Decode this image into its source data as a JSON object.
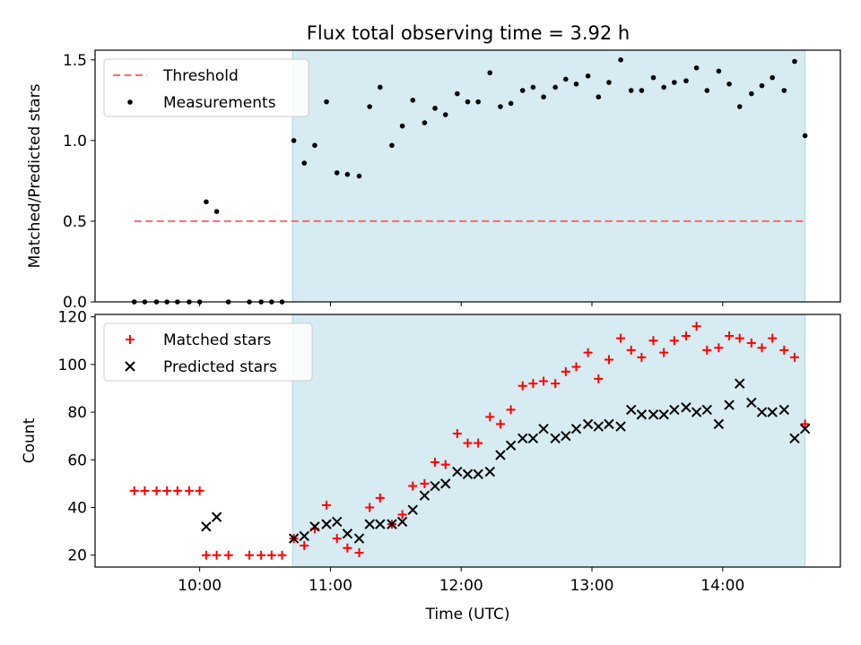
{
  "title": "Flux total observing time = 3.92 h",
  "colors": {
    "shade": "#add8e6",
    "threshold": "#ff5050",
    "matched": "#ff0000",
    "predicted": "#000000",
    "measure": "#000000"
  },
  "chart_data": [
    {
      "type": "scatter",
      "panel": "top",
      "ylabel": "Matched/Predicted stars",
      "xlabel": "",
      "xlim_hours": [
        9.2,
        14.9
      ],
      "ylim": [
        0,
        1.56
      ],
      "yticks": [
        0.0,
        0.5,
        1.0,
        1.5
      ],
      "ytick_labels": [
        "0.0",
        "0.5",
        "1.0",
        "1.5"
      ],
      "shaded_region_hours": [
        10.71,
        14.63
      ],
      "threshold": {
        "name": "Threshold",
        "value": 0.5,
        "x_range_hours": [
          9.5,
          14.63
        ]
      },
      "legend": [
        "Threshold",
        "Measurements"
      ],
      "legend_location": "upper-left",
      "series": [
        {
          "name": "Measurements",
          "x_hours": [
            9.5,
            9.58,
            9.67,
            9.75,
            9.83,
            9.92,
            10.0,
            10.05,
            10.13,
            10.22,
            10.38,
            10.47,
            10.55,
            10.63,
            10.72,
            10.8,
            10.88,
            10.97,
            11.05,
            11.13,
            11.22,
            11.3,
            11.38,
            11.47,
            11.55,
            11.63,
            11.72,
            11.8,
            11.88,
            11.97,
            12.05,
            12.13,
            12.22,
            12.3,
            12.38,
            12.47,
            12.55,
            12.63,
            12.72,
            12.8,
            12.88,
            12.97,
            13.05,
            13.13,
            13.22,
            13.3,
            13.38,
            13.47,
            13.55,
            13.63,
            13.72,
            13.8,
            13.88,
            13.97,
            14.05,
            14.13,
            14.22,
            14.3,
            14.38,
            14.47,
            14.55,
            14.63
          ],
          "values": [
            0,
            0,
            0,
            0,
            0,
            0,
            0,
            0.62,
            0.56,
            0,
            0,
            0,
            0,
            0,
            1.0,
            0.86,
            0.97,
            1.24,
            0.8,
            0.79,
            0.78,
            1.21,
            1.33,
            0.97,
            1.09,
            1.25,
            1.11,
            1.2,
            1.16,
            1.29,
            1.24,
            1.24,
            1.42,
            1.21,
            1.23,
            1.31,
            1.33,
            1.27,
            1.33,
            1.38,
            1.35,
            1.4,
            1.27,
            1.36,
            1.5,
            1.31,
            1.31,
            1.39,
            1.33,
            1.36,
            1.37,
            1.45,
            1.31,
            1.43,
            1.35,
            1.21,
            1.29,
            1.34,
            1.39,
            1.31,
            1.49,
            1.03
          ]
        }
      ]
    },
    {
      "type": "scatter",
      "panel": "bottom",
      "ylabel": "Count",
      "xlabel": "Time (UTC)",
      "xlim_hours": [
        9.2,
        14.9
      ],
      "ylim": [
        15,
        121
      ],
      "yticks": [
        20,
        40,
        60,
        80,
        100,
        120
      ],
      "ytick_labels": [
        "20",
        "40",
        "60",
        "80",
        "100",
        "120"
      ],
      "xticks_hours": [
        10,
        11,
        12,
        13,
        14
      ],
      "xtick_labels": [
        "10:00",
        "11:00",
        "12:00",
        "13:00",
        "14:00"
      ],
      "shaded_region_hours": [
        10.71,
        14.63
      ],
      "legend": [
        "Matched stars",
        "Predicted stars"
      ],
      "legend_location": "upper-left",
      "series": [
        {
          "name": "Matched stars",
          "marker": "plus",
          "x_hours": [
            9.5,
            9.58,
            9.67,
            9.75,
            9.83,
            9.92,
            10.0,
            10.05,
            10.13,
            10.22,
            10.38,
            10.47,
            10.55,
            10.63,
            10.72,
            10.8,
            10.88,
            10.97,
            11.05,
            11.13,
            11.22,
            11.3,
            11.38,
            11.47,
            11.55,
            11.63,
            11.72,
            11.8,
            11.88,
            11.97,
            12.05,
            12.13,
            12.22,
            12.3,
            12.38,
            12.47,
            12.55,
            12.63,
            12.72,
            12.8,
            12.88,
            12.97,
            13.05,
            13.13,
            13.22,
            13.3,
            13.38,
            13.47,
            13.55,
            13.63,
            13.72,
            13.8,
            13.88,
            13.97,
            14.05,
            14.13,
            14.22,
            14.3,
            14.38,
            14.47,
            14.55,
            14.63
          ],
          "values": [
            47,
            47,
            47,
            47,
            47,
            47,
            47,
            20,
            20,
            20,
            20,
            20,
            20,
            20,
            27,
            24,
            31,
            41,
            27,
            23,
            21,
            40,
            44,
            33,
            37,
            49,
            50,
            59,
            58,
            71,
            67,
            67,
            78,
            75,
            81,
            91,
            92,
            93,
            92,
            97,
            99,
            105,
            94,
            102,
            111,
            106,
            103,
            110,
            105,
            110,
            112,
            116,
            106,
            107,
            112,
            111,
            109,
            107,
            111,
            106,
            103,
            75
          ]
        },
        {
          "name": "Predicted stars",
          "marker": "x",
          "x_hours": [
            10.05,
            10.13,
            10.72,
            10.8,
            10.88,
            10.97,
            11.05,
            11.13,
            11.22,
            11.3,
            11.38,
            11.47,
            11.55,
            11.63,
            11.72,
            11.8,
            11.88,
            11.97,
            12.05,
            12.13,
            12.22,
            12.3,
            12.38,
            12.47,
            12.55,
            12.63,
            12.72,
            12.8,
            12.88,
            12.97,
            13.05,
            13.13,
            13.22,
            13.3,
            13.38,
            13.47,
            13.55,
            13.63,
            13.72,
            13.8,
            13.88,
            13.97,
            14.05,
            14.13,
            14.22,
            14.3,
            14.38,
            14.47,
            14.55,
            14.63
          ],
          "values": [
            32,
            36,
            27,
            28,
            32,
            33,
            34,
            29,
            27,
            33,
            33,
            33,
            34,
            39,
            45,
            49,
            50,
            55,
            54,
            54,
            55,
            62,
            66,
            69,
            69,
            73,
            69,
            70,
            73,
            75,
            74,
            75,
            74,
            81,
            79,
            79,
            79,
            81,
            82,
            80,
            81,
            75,
            83,
            92,
            84,
            80,
            80,
            81,
            69,
            73
          ]
        }
      ]
    }
  ]
}
